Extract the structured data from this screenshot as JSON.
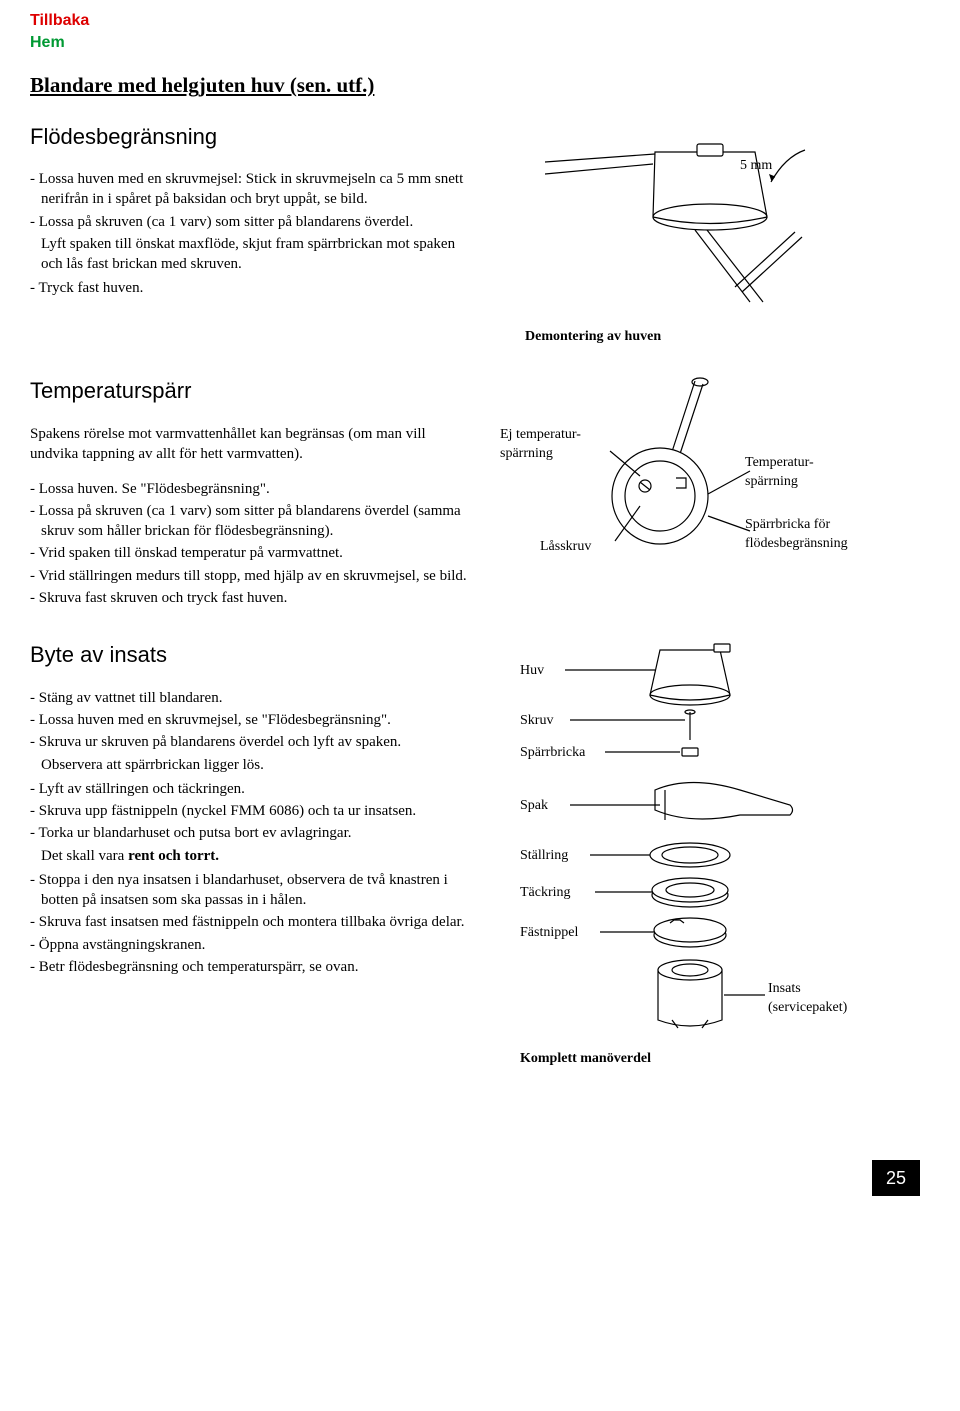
{
  "links": {
    "back": "Tillbaka",
    "home": "Hem"
  },
  "colors": {
    "link_red": "#dd0000",
    "link_green": "#009933",
    "page_bg": "#000000",
    "page_fg": "#ffffff",
    "line": "#000000"
  },
  "title": "Blandare med helgjuten huv (sen. utf.)",
  "page_number": "25",
  "sec1": {
    "heading": "Flödesbegränsning",
    "items": [
      "- Lossa huven med en skruvmejsel: Stick in skruvmejseln ca 5 mm snett nerifrån in i spåret på baksidan och bryt uppåt, se bild.",
      "- Lossa på skruven (ca 1 varv) som sitter på blandarens överdel.",
      "Lyft spaken till önskat maxflöde, skjut fram spärrbrickan mot spaken och lås fast brickan med skruven.",
      "- Tryck fast huven."
    ],
    "fig": {
      "caption": "Demontering av huven",
      "dim_label": "5 mm"
    }
  },
  "sec2": {
    "heading": "Temperaturspärr",
    "intro": "Spakens rörelse mot varmvattenhållet kan begränsas (om man vill undvika tappning av allt för hett varmvatten).",
    "items": [
      "- Lossa huven. Se \"Flödesbegränsning\".",
      "- Lossa på skruven (ca 1 varv) som sitter på blandarens överdel (samma skruv som håller brickan för flödesbegränsning).",
      "- Vrid spaken till önskad temperatur på varmvattnet.",
      "- Vrid ställringen medurs till stopp, med hjälp av en skruvmejsel, se bild.",
      "- Skruva fast skruven och tryck fast huven."
    ],
    "fig": {
      "label_ej": "Ej temperatur-spärrning",
      "label_temp": "Temperatur-spärrning",
      "label_lock": "Låsskruv",
      "label_bricka": "Spärrbricka för flödesbegränsning"
    }
  },
  "sec3": {
    "heading": "Byte av insats",
    "items": [
      "- Stäng av vattnet till blandaren.",
      "- Lossa huven med en skruvmejsel, se \"Flödesbegränsning\".",
      "- Skruva ur skruven på blandarens överdel och lyft av spaken.",
      "Observera att spärrbrickan ligger lös.",
      "- Lyft av ställringen och täckringen.",
      "- Skruva upp fästnippeln (nyckel FMM 6086) och ta ur insatsen.",
      "- Torka ur blandarhuset och putsa bort ev avlagringar.",
      "Det skall vara <b>rent och torrt.</b>",
      "- Stoppa i den nya insatsen i blandarhuset, observera de två knastren i botten på insatsen som ska passas in i hålen.",
      "- Skruva fast insatsen med fästnippeln och montera tillbaka övriga delar.",
      "- Öppna avstängningskranen.",
      "- Betr flödesbegränsning och temperaturspärr, se ovan."
    ],
    "fig": {
      "parts": [
        "Huv",
        "Skruv",
        "Spärrbricka",
        "Spak",
        "Ställring",
        "Täckring",
        "Fästnippel"
      ],
      "insats": "Insats (servicepaket)",
      "caption": "Komplett manöverdel"
    }
  }
}
